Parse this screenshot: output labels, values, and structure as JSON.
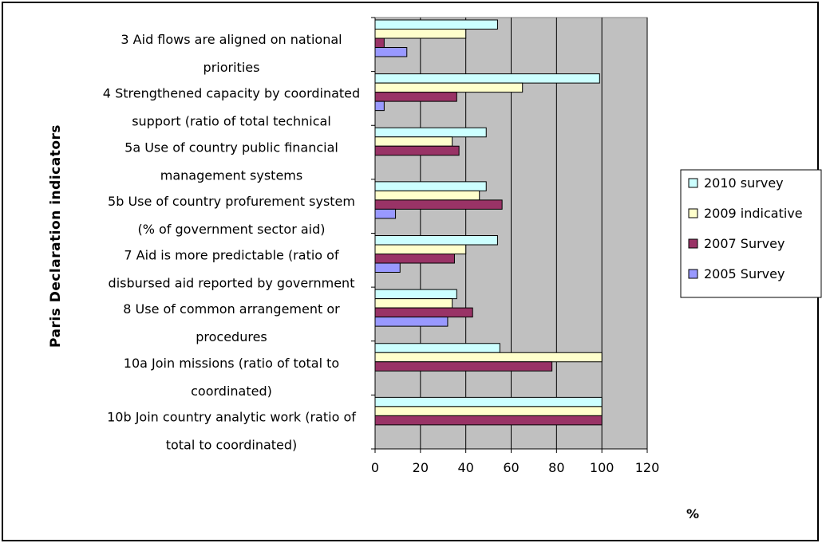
{
  "chart_data": {
    "type": "bar",
    "orientation": "horizontal",
    "title": "",
    "xlabel": "%",
    "ylabel": "Paris Declaration indicators",
    "xlim": [
      0,
      120
    ],
    "x_ticks": [
      "0",
      "20",
      "40",
      "60",
      "80",
      "100",
      "120"
    ],
    "grid": true,
    "legend_position": "right",
    "categories": [
      [
        "3 Aid flows are aligned on national",
        "priorities"
      ],
      [
        "4 Strengthened capacity by coordinated",
        "support (ratio of total technical"
      ],
      [
        "5a Use of country public financial",
        "management systems"
      ],
      [
        "5b Use of country profurement system",
        "(% of government sector aid)"
      ],
      [
        "7 Aid is more predictable (ratio of",
        "disbursed aid reported by government"
      ],
      [
        "8 Use of common arrangement or",
        "procedures"
      ],
      [
        "10a Join missions (ratio of total to",
        "coordinated)"
      ],
      [
        "10b Join country analytic work (ratio of",
        "total to coordinated)"
      ]
    ],
    "series": [
      {
        "name": "2010 survey",
        "color": "#ccffff",
        "values": [
          54,
          99,
          49,
          49,
          54,
          36,
          55,
          100
        ]
      },
      {
        "name": "2009 indicative",
        "color": "#ffffcc",
        "values": [
          40,
          65,
          34,
          46,
          40,
          34,
          100,
          100
        ]
      },
      {
        "name": "2007 Survey",
        "color": "#993366",
        "values": [
          4,
          36,
          37,
          56,
          35,
          43,
          78,
          100
        ]
      },
      {
        "name": "2005 Survey",
        "color": "#9999ff",
        "values": [
          14,
          4,
          0,
          9,
          11,
          32,
          0,
          0
        ]
      }
    ]
  }
}
